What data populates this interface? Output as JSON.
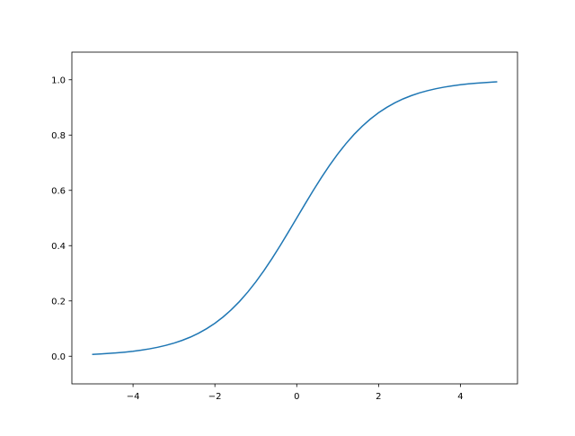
{
  "chart_data": {
    "type": "line",
    "title": "",
    "xlabel": "",
    "ylabel": "",
    "xlim": [
      -5.495,
      5.395
    ],
    "ylim": [
      -0.1,
      1.1
    ],
    "grid": false,
    "xticks": [
      -4,
      -2,
      0,
      2,
      4
    ],
    "xtick_labels": [
      "−4",
      "−2",
      "0",
      "2",
      "4"
    ],
    "yticks": [
      0.0,
      0.2,
      0.4,
      0.6,
      0.8,
      1.0
    ],
    "ytick_labels": [
      "0.0",
      "0.2",
      "0.4",
      "0.6",
      "0.8",
      "1.0"
    ],
    "series": [
      {
        "color": "#1f77b4",
        "x": [
          -5.0,
          -4.8,
          -4.6,
          -4.4,
          -4.2,
          -4.0,
          -3.8,
          -3.6,
          -3.4,
          -3.2,
          -3.0,
          -2.8,
          -2.6,
          -2.4,
          -2.2,
          -2.0,
          -1.8,
          -1.6,
          -1.4,
          -1.2,
          -1.0,
          -0.8,
          -0.6,
          -0.4,
          -0.2,
          0.0,
          0.2,
          0.4,
          0.6,
          0.8,
          1.0,
          1.2,
          1.4,
          1.6,
          1.8,
          2.0,
          2.2,
          2.4,
          2.6,
          2.8,
          3.0,
          3.2,
          3.4,
          3.6,
          3.8,
          4.0,
          4.2,
          4.4,
          4.6,
          4.8,
          4.9
        ],
        "y": [
          0.0067,
          0.0082,
          0.01,
          0.0121,
          0.0148,
          0.018,
          0.0219,
          0.0266,
          0.0323,
          0.0392,
          0.0474,
          0.0573,
          0.0691,
          0.0832,
          0.0998,
          0.1192,
          0.1419,
          0.168,
          0.1978,
          0.2315,
          0.2689,
          0.31,
          0.3543,
          0.4013,
          0.4502,
          0.5,
          0.5498,
          0.5987,
          0.6457,
          0.69,
          0.7311,
          0.7685,
          0.8022,
          0.832,
          0.8581,
          0.8808,
          0.9002,
          0.9168,
          0.9309,
          0.9427,
          0.9526,
          0.9608,
          0.9677,
          0.9734,
          0.9781,
          0.982,
          0.9852,
          0.9879,
          0.99,
          0.9918,
          0.9926
        ]
      }
    ]
  }
}
